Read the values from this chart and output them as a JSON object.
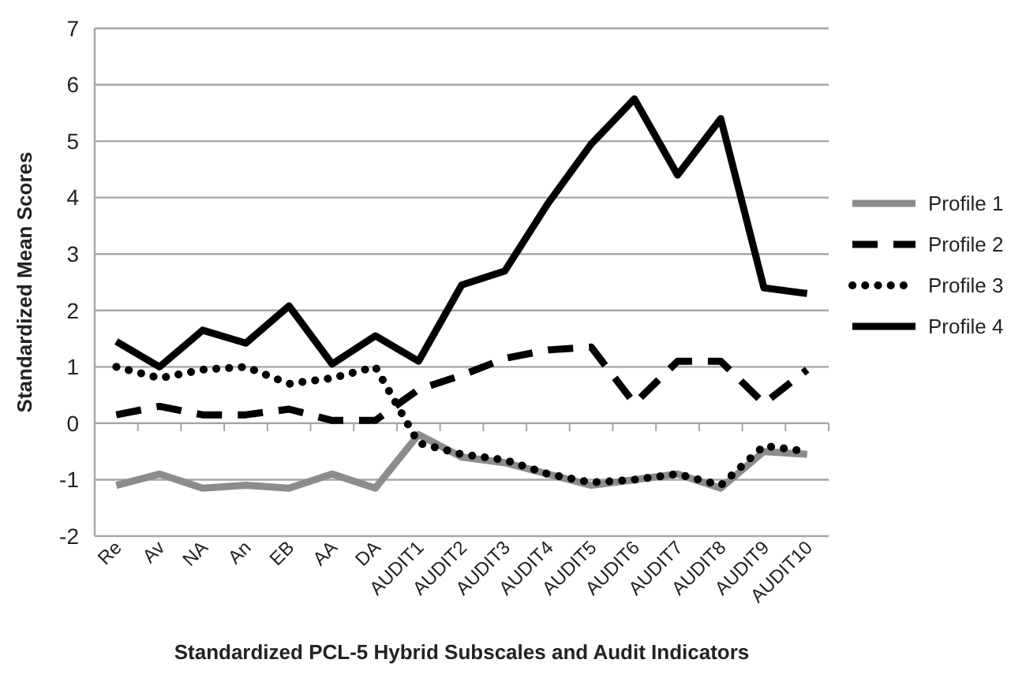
{
  "chart_data": {
    "type": "line",
    "xlabel": "Standardized PCL-5 Hybrid Subscales and Audit Indicators",
    "ylabel": "Standardized Mean Scores",
    "categories": [
      "Re",
      "Av",
      "NA",
      "An",
      "EB",
      "AA",
      "DA",
      "AUDIT1",
      "AUDIT2",
      "AUDIT3",
      "AUDIT4",
      "AUDIT5",
      "AUDIT6",
      "AUDIT7",
      "AUDIT8",
      "AUDIT9",
      "AUDIT10"
    ],
    "series": [
      {
        "name": "Profile 1",
        "color": "#8c8c8c",
        "line_style": "solid",
        "values": [
          -1.1,
          -0.9,
          -1.15,
          -1.1,
          -1.15,
          -0.9,
          -1.15,
          -0.2,
          -0.6,
          -0.7,
          -0.9,
          -1.1,
          -1.0,
          -0.9,
          -1.15,
          -0.5,
          -0.55
        ]
      },
      {
        "name": "Profile 2",
        "color": "#000000",
        "line_style": "dashed",
        "values": [
          0.15,
          0.3,
          0.15,
          0.15,
          0.25,
          0.05,
          0.05,
          0.6,
          0.85,
          1.15,
          1.3,
          1.35,
          0.35,
          1.1,
          1.1,
          0.35,
          0.95
        ]
      },
      {
        "name": "Profile 3",
        "color": "#000000",
        "line_style": "dotted",
        "values": [
          1.0,
          0.8,
          0.95,
          1.0,
          0.7,
          0.8,
          1.0,
          -0.35,
          -0.55,
          -0.65,
          -0.9,
          -1.05,
          -1.0,
          -0.9,
          -1.1,
          -0.4,
          -0.5
        ]
      },
      {
        "name": "Profile 4",
        "color": "#000000",
        "line_style": "solid",
        "values": [
          1.45,
          1.0,
          1.65,
          1.42,
          2.08,
          1.05,
          1.55,
          1.1,
          2.45,
          2.7,
          3.9,
          4.95,
          5.75,
          4.4,
          5.4,
          2.4,
          2.3
        ]
      }
    ],
    "ylim": [
      -2,
      7
    ],
    "yticks": [
      -2,
      -1,
      0,
      1,
      2,
      3,
      4,
      5,
      6,
      7
    ],
    "grid": "y",
    "legend": "right",
    "marker": "none"
  }
}
